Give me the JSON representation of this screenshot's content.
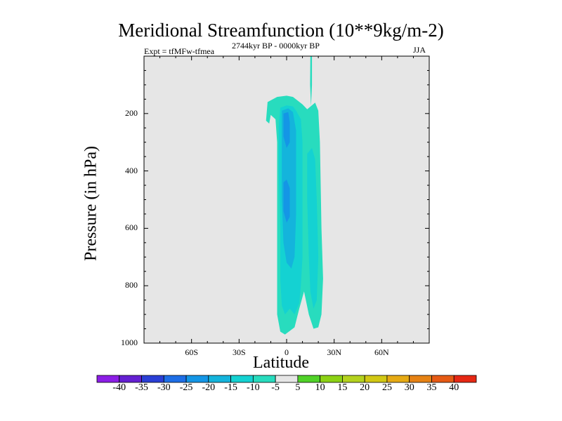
{
  "chart_data": {
    "type": "contour",
    "title": "Meridional Streamfunction (10**9kg/m-2)",
    "left_string": "Expt = tfMFw-tfmea",
    "center_string": "2744kyr BP - 0000kyr BP",
    "right_string": "JJA",
    "xlabel": "Latitude",
    "ylabel": "Pressure (in hPa)",
    "xlim": [
      -90,
      90
    ],
    "ylim": [
      1000,
      0
    ],
    "xticks": [
      {
        "value": -60,
        "label": "60S"
      },
      {
        "value": -30,
        "label": "30S"
      },
      {
        "value": 0,
        "label": "0"
      },
      {
        "value": 30,
        "label": "30N"
      },
      {
        "value": 60,
        "label": "60N"
      }
    ],
    "yticks": [
      {
        "value": 200,
        "label": "200"
      },
      {
        "value": 400,
        "label": "400"
      },
      {
        "value": 600,
        "label": "600"
      },
      {
        "value": 800,
        "label": "800"
      },
      {
        "value": 1000,
        "label": "1000"
      }
    ],
    "colorbar": {
      "levels": [
        -40,
        -35,
        -30,
        -25,
        -20,
        -15,
        -10,
        -5,
        5,
        10,
        15,
        20,
        25,
        30,
        35,
        40
      ],
      "labels": [
        "-40",
        "-35",
        "-30",
        "-25",
        "-20",
        "-15",
        "-10",
        "-5",
        "5",
        "10",
        "15",
        "20",
        "25",
        "30",
        "35",
        "40"
      ],
      "colors": [
        "#8c1ee6",
        "#6420d2",
        "#2a3fd6",
        "#1e6ee6",
        "#1496e6",
        "#14b4dc",
        "#14d2d2",
        "#28dcbe",
        "#e6e6e6",
        "#50d228",
        "#8cd214",
        "#b4d21e",
        "#d2c814",
        "#e6aa14",
        "#e68214",
        "#e65a14",
        "#e62814"
      ]
    },
    "regions": [
      {
        "name": "cell-outer",
        "level": -5,
        "color": "#28dcbe",
        "polygon": [
          [
            -13,
            225
          ],
          [
            -12,
            160
          ],
          [
            -6,
            142
          ],
          [
            0,
            138
          ],
          [
            4,
            142
          ],
          [
            10,
            168
          ],
          [
            13,
            185
          ],
          [
            18,
            162
          ],
          [
            20,
            190
          ],
          [
            21,
            300
          ],
          [
            22,
            600
          ],
          [
            23,
            775
          ],
          [
            22,
            900
          ],
          [
            20,
            945
          ],
          [
            17,
            950
          ],
          [
            14,
            900
          ],
          [
            11,
            820
          ],
          [
            8,
            880
          ],
          [
            5,
            945
          ],
          [
            -1,
            970
          ],
          [
            -4,
            960
          ],
          [
            -6,
            900
          ],
          [
            -6,
            700
          ],
          [
            -6,
            500
          ],
          [
            -6,
            300
          ],
          [
            -7,
            220
          ],
          [
            -10,
            205
          ],
          [
            -11,
            235
          ]
        ]
      },
      {
        "name": "column-spike",
        "level": -5,
        "color": "#28dcbe",
        "polygon": [
          [
            15,
            0
          ],
          [
            16,
            0
          ],
          [
            16,
            100
          ],
          [
            15.4,
            175
          ],
          [
            14.8,
            100
          ]
        ]
      },
      {
        "name": "cell-mid",
        "level": -10,
        "color": "#14d2d2",
        "polygon": [
          [
            -4,
            180
          ],
          [
            0,
            172
          ],
          [
            4,
            175
          ],
          [
            6,
            190
          ],
          [
            9,
            220
          ],
          [
            10,
            300
          ],
          [
            10,
            500
          ],
          [
            10,
            700
          ],
          [
            9,
            800
          ],
          [
            8,
            860
          ],
          [
            5,
            900
          ],
          [
            2,
            880
          ],
          [
            -1,
            900
          ],
          [
            -3,
            870
          ],
          [
            -4,
            780
          ],
          [
            -4,
            600
          ],
          [
            -5,
            400
          ],
          [
            -5,
            250
          ]
        ]
      },
      {
        "name": "cell-right",
        "level": -10,
        "color": "#14d2d2",
        "polygon": [
          [
            13,
            340
          ],
          [
            16,
            320
          ],
          [
            18,
            360
          ],
          [
            19,
            500
          ],
          [
            20,
            700
          ],
          [
            19,
            850
          ],
          [
            17,
            880
          ],
          [
            15,
            820
          ],
          [
            14,
            700
          ],
          [
            13,
            500
          ]
        ]
      },
      {
        "name": "cell-inner",
        "level": -15,
        "color": "#14b4dc",
        "polygon": [
          [
            -3,
            190
          ],
          [
            1,
            182
          ],
          [
            4,
            195
          ],
          [
            6,
            260
          ],
          [
            6,
            400
          ],
          [
            6,
            550
          ],
          [
            5,
            700
          ],
          [
            3,
            740
          ],
          [
            0,
            720
          ],
          [
            -2,
            650
          ],
          [
            -3,
            500
          ],
          [
            -3,
            350
          ],
          [
            -3,
            240
          ]
        ]
      },
      {
        "name": "cell-core",
        "level": -20,
        "color": "#1496e6",
        "polygon": [
          [
            -2,
            200
          ],
          [
            1,
            195
          ],
          [
            2,
            230
          ],
          [
            2,
            300
          ],
          [
            0,
            320
          ],
          [
            -2,
            280
          ]
        ]
      },
      {
        "name": "cell-core-lower",
        "level": -20,
        "color": "#1496e6",
        "polygon": [
          [
            -2,
            440
          ],
          [
            0,
            430
          ],
          [
            2,
            460
          ],
          [
            2,
            560
          ],
          [
            0,
            580
          ],
          [
            -2,
            540
          ]
        ]
      }
    ]
  }
}
